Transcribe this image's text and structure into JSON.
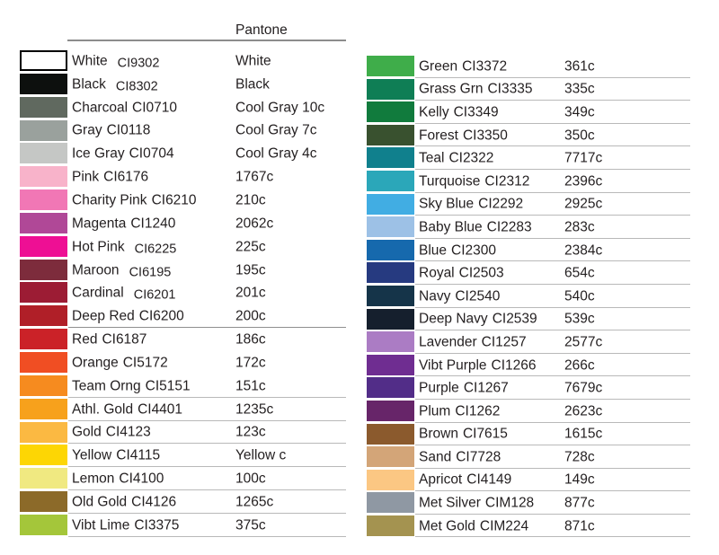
{
  "header": {
    "pantone_label": "Pantone"
  },
  "colors": {
    "text": "#231f20",
    "divider_light": "#b9b9b9",
    "divider_dark": "#8f8f8f",
    "header_rule": "#8c8c8c"
  },
  "left_table": {
    "rows": [
      {
        "name": "White",
        "code": "CI9302",
        "pantone": "White",
        "swatch": "#ffffff",
        "underline": "none",
        "code_shift": true,
        "bordered": true
      },
      {
        "name": "Black",
        "code": "CI8302",
        "pantone": "Black",
        "swatch": "#0d100e",
        "underline": "none",
        "code_shift": true,
        "bordered": false
      },
      {
        "name": "Charcoal",
        "code": "CI0710",
        "pantone": "Cool Gray 10c",
        "swatch": "#60695f",
        "underline": "none",
        "code_shift": false,
        "bordered": false
      },
      {
        "name": "Gray",
        "code": "CI0118",
        "pantone": "Cool Gray 7c",
        "swatch": "#9aa19d",
        "underline": "none",
        "code_shift": false,
        "bordered": false
      },
      {
        "name": "Ice Gray",
        "code": "CI0704",
        "pantone": "Cool Gray 4c",
        "swatch": "#c5c7c5",
        "underline": "none",
        "code_shift": false,
        "bordered": false
      },
      {
        "name": "Pink",
        "code": "CI6176",
        "pantone": "1767c",
        "swatch": "#f8b3ca",
        "underline": "none",
        "code_shift": false,
        "bordered": false
      },
      {
        "name": "Charity Pink",
        "code": "CI6210",
        "pantone": "210c",
        "swatch": "#f177b5",
        "underline": "none",
        "code_shift": false,
        "bordered": false
      },
      {
        "name": "Magenta",
        "code": "CI1240",
        "pantone": "2062c",
        "swatch": "#b04897",
        "underline": "none",
        "code_shift": false,
        "bordered": false
      },
      {
        "name": "Hot Pink",
        "code": "CI6225",
        "pantone": "225c",
        "swatch": "#ee0f94",
        "underline": "none",
        "code_shift": true,
        "bordered": false
      },
      {
        "name": "Maroon",
        "code": "CI6195",
        "pantone": "195c",
        "swatch": "#7d2c3c",
        "underline": "none",
        "code_shift": true,
        "bordered": false
      },
      {
        "name": "Cardinal",
        "code": "CI6201",
        "pantone": "201c",
        "swatch": "#9c1c34",
        "underline": "none",
        "code_shift": true,
        "bordered": false
      },
      {
        "name": "Deep Red",
        "code": "CI6200",
        "pantone": "200c",
        "swatch": "#b01f28",
        "underline": "dark",
        "code_shift": false,
        "bordered": false
      },
      {
        "name": "Red",
        "code": "CI6187",
        "pantone": "186c",
        "swatch": "#cb2228",
        "underline": "none",
        "code_shift": false,
        "bordered": false
      },
      {
        "name": "Orange",
        "code": "CI5172",
        "pantone": "172c",
        "swatch": "#f04e23",
        "underline": "none",
        "code_shift": false,
        "bordered": false
      },
      {
        "name": "Team Orng",
        "code": "CI5151",
        "pantone": "151c",
        "swatch": "#f68b1f",
        "underline": "light",
        "code_shift": false,
        "bordered": false
      },
      {
        "name": "Athl. Gold",
        "code": "CI4401",
        "pantone": "1235c",
        "swatch": "#f7a11c",
        "underline": "light",
        "code_shift": false,
        "bordered": false
      },
      {
        "name": "Gold",
        "code": "CI4123",
        "pantone": "123c",
        "swatch": "#fbb942",
        "underline": "light",
        "code_shift": false,
        "bordered": false
      },
      {
        "name": "Yellow",
        "code": "CI4115",
        "pantone": "Yellow c",
        "swatch": "#fdd604",
        "underline": "light",
        "code_shift": false,
        "bordered": false
      },
      {
        "name": "Lemon",
        "code": "CI4100",
        "pantone": "100c",
        "swatch": "#f0e981",
        "underline": "light",
        "code_shift": false,
        "bordered": false
      },
      {
        "name": "Old Gold",
        "code": "CI4126",
        "pantone": "1265c",
        "swatch": "#8c6a29",
        "underline": "light",
        "code_shift": false,
        "bordered": false
      },
      {
        "name": "Vibt Lime",
        "code": "CI3375",
        "pantone": "375c",
        "swatch": "#a4c63a",
        "underline": "light",
        "code_shift": false,
        "bordered": false
      }
    ]
  },
  "right_table": {
    "rows": [
      {
        "name": "Green",
        "code": "CI3372",
        "pantone": "361c",
        "swatch": "#3fad4a",
        "underline": "light",
        "code_shift": false,
        "bordered": false
      },
      {
        "name": "Grass Grn",
        "code": "CI3335",
        "pantone": "335c",
        "swatch": "#0f7e55",
        "underline": "light",
        "code_shift": false,
        "bordered": false
      },
      {
        "name": "Kelly",
        "code": "CI3349",
        "pantone": "349c",
        "swatch": "#117b3d",
        "underline": "light",
        "code_shift": false,
        "bordered": false
      },
      {
        "name": "Forest",
        "code": "CI3350",
        "pantone": "350c",
        "swatch": "#39512f",
        "underline": "light",
        "code_shift": false,
        "bordered": false
      },
      {
        "name": "Teal",
        "code": "CI2322",
        "pantone": "7717c",
        "swatch": "#10808d",
        "underline": "light",
        "code_shift": false,
        "bordered": false
      },
      {
        "name": "Turquoise",
        "code": "CI2312",
        "pantone": "2396c",
        "swatch": "#2ba7b9",
        "underline": "light",
        "code_shift": false,
        "bordered": false
      },
      {
        "name": "Sky Blue",
        "code": "CI2292",
        "pantone": "2925c",
        "swatch": "#41ade3",
        "underline": "light",
        "code_shift": false,
        "bordered": false
      },
      {
        "name": "Baby Blue",
        "code": "CI2283",
        "pantone": "283c",
        "swatch": "#9dc1e6",
        "underline": "light",
        "code_shift": false,
        "bordered": false
      },
      {
        "name": "Blue",
        "code": "CI2300",
        "pantone": "2384c",
        "swatch": "#1669ad",
        "underline": "light",
        "code_shift": false,
        "bordered": false
      },
      {
        "name": "Royal",
        "code": "CI2503",
        "pantone": "654c",
        "swatch": "#263a80",
        "underline": "light",
        "code_shift": false,
        "bordered": false
      },
      {
        "name": "Navy",
        "code": "CI2540",
        "pantone": "540c",
        "swatch": "#153449",
        "underline": "light",
        "code_shift": false,
        "bordered": false
      },
      {
        "name": "Deep Navy",
        "code": "CI2539",
        "pantone": "539c",
        "swatch": "#151f2d",
        "underline": "light",
        "code_shift": false,
        "bordered": false
      },
      {
        "name": "Lavender",
        "code": "CI1257",
        "pantone": "2577c",
        "swatch": "#ab7cc4",
        "underline": "light",
        "code_shift": false,
        "bordered": false
      },
      {
        "name": "Vibt Purple",
        "code": "CI1266",
        "pantone": "266c",
        "swatch": "#6f2d91",
        "underline": "light",
        "code_shift": false,
        "bordered": false
      },
      {
        "name": "Purple",
        "code": "CI1267",
        "pantone": "7679c",
        "swatch": "#522d88",
        "underline": "light",
        "code_shift": false,
        "bordered": false
      },
      {
        "name": "Plum",
        "code": "CI1262",
        "pantone": "2623c",
        "swatch": "#672569",
        "underline": "light",
        "code_shift": false,
        "bordered": false
      },
      {
        "name": "Brown",
        "code": "CI7615",
        "pantone": "1615c",
        "swatch": "#8b5a2d",
        "underline": "light",
        "code_shift": false,
        "bordered": false
      },
      {
        "name": "Sand",
        "code": "CI7728",
        "pantone": "728c",
        "swatch": "#d3a578",
        "underline": "light",
        "code_shift": false,
        "bordered": false
      },
      {
        "name": "Apricot",
        "code": "CI4149",
        "pantone": "149c",
        "swatch": "#fbc783",
        "underline": "light",
        "code_shift": false,
        "bordered": false
      },
      {
        "name": "Met Silver",
        "code": "CIM128",
        "pantone": "877c",
        "swatch": "#8f98a3",
        "underline": "light",
        "code_shift": false,
        "bordered": false
      },
      {
        "name": "Met Gold",
        "code": "CIM224",
        "pantone": "871c",
        "swatch": "#a49350",
        "underline": "light",
        "code_shift": false,
        "bordered": false
      }
    ]
  }
}
